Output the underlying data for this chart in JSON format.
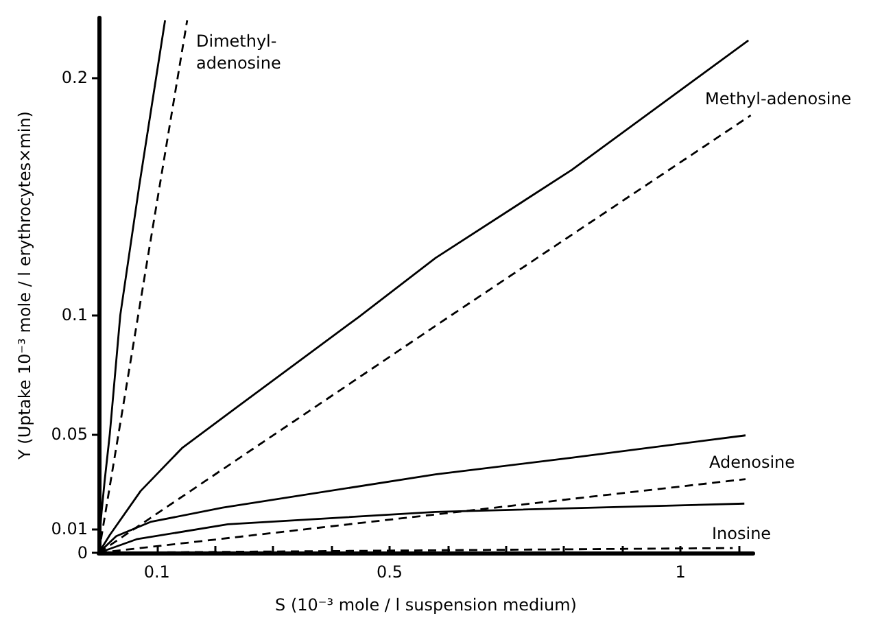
{
  "chart_data": {
    "type": "line",
    "xlabel": "S (10⁻³ mole / l suspension medium)",
    "ylabel": "Y (Uptake 10⁻³ mole / l erythrocytes×min)",
    "xlim": [
      0,
      1.125
    ],
    "ylim": [
      0,
      0.225
    ],
    "xticks": [
      {
        "value": 0.1,
        "label": "0.1"
      },
      {
        "value": 0.2,
        "label": null
      },
      {
        "value": 0.3,
        "label": null
      },
      {
        "value": 0.4,
        "label": null
      },
      {
        "value": 0.5,
        "label": "0.5"
      },
      {
        "value": 0.6,
        "label": null
      },
      {
        "value": 0.7,
        "label": null
      },
      {
        "value": 0.8,
        "label": null
      },
      {
        "value": 0.9,
        "label": null
      },
      {
        "value": 1,
        "label": "1"
      },
      {
        "value": 1.1,
        "label": null
      }
    ],
    "yticks": [
      0,
      0.01,
      0.05,
      0.1,
      0.2
    ],
    "series": [
      {
        "color": "#000000",
        "line_style": "solid",
        "x": [
          0,
          0.004,
          0.01,
          0.019,
          0.037,
          0.07,
          0.114
        ],
        "values": [
          0,
          0.015,
          0.03,
          0.05,
          0.1,
          0.155,
          0.224
        ]
      },
      {
        "color": "#000000",
        "line_style": "dashed",
        "x": [
          0,
          0.152
        ],
        "values": [
          0,
          0.224
        ]
      },
      {
        "color": "#000000",
        "line_style": "solid",
        "x": [
          0,
          0.019,
          0.072,
          0.143,
          0.236,
          0.446,
          0.579,
          0.813,
          1.117
        ],
        "values": [
          0,
          0.0075,
          0.026,
          0.044,
          0.061,
          0.099,
          0.124,
          0.161,
          0.2155
        ]
      },
      {
        "color": "#000000",
        "line_style": "dashed",
        "x": [
          0,
          0.603,
          1.121
        ],
        "values": [
          0,
          0.0994,
          0.184
        ]
      },
      {
        "color": "#000000",
        "line_style": "solid",
        "x": [
          0,
          0.03,
          0.089,
          0.213,
          0.579,
          0.813,
          1.112
        ],
        "values": [
          0,
          0.007,
          0.013,
          0.019,
          0.033,
          0.04,
          0.0494
        ]
      },
      {
        "color": "#000000",
        "line_style": "dashed",
        "x": [
          0,
          1.112
        ],
        "values": [
          0,
          0.031
        ]
      },
      {
        "color": "#000000",
        "line_style": "solid",
        "x": [
          0,
          0.065,
          0.222,
          0.579,
          1.11
        ],
        "values": [
          0,
          0.0057,
          0.012,
          0.0172,
          0.0207
        ]
      },
      {
        "color": "#000000",
        "line_style": "dashed",
        "x": [
          0,
          1.09
        ],
        "values": [
          0,
          0.002
        ]
      }
    ],
    "annotations": [
      "Dimethyl-\nadenosine",
      "Methyl-adenosine",
      "Adenosine",
      "Inosine"
    ]
  }
}
